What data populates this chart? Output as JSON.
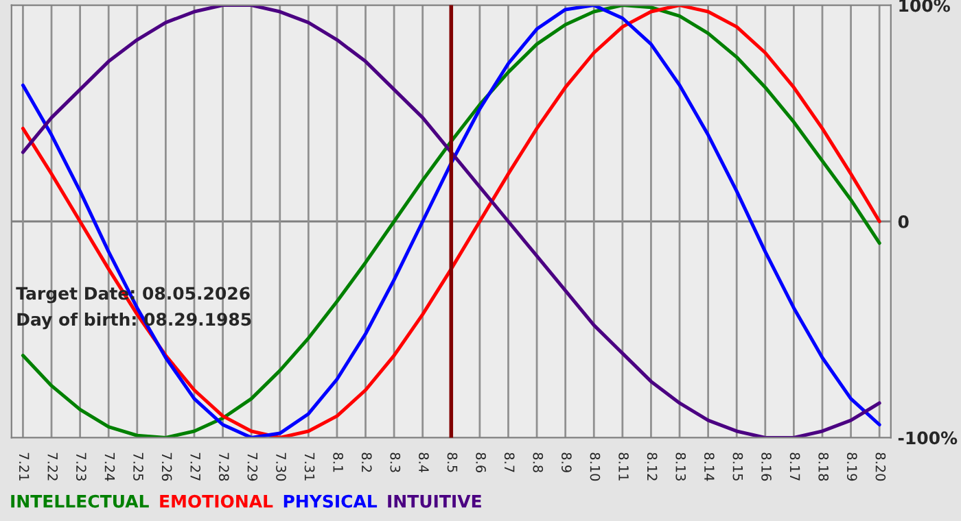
{
  "chart_data": {
    "type": "line",
    "categories": [
      "7.21",
      "7.22",
      "7.23",
      "7.24",
      "7.25",
      "7.26",
      "7.27",
      "7.28",
      "7.29",
      "7.30",
      "7.31",
      "8.1",
      "8.2",
      "8.3",
      "8.4",
      "8.5",
      "8.6",
      "8.7",
      "8.8",
      "8.9",
      "8.10",
      "8.11",
      "8.12",
      "8.13",
      "8.14",
      "8.15",
      "8.16",
      "8.17",
      "8.18",
      "8.19",
      "8.20"
    ],
    "series": [
      {
        "name": "INTELLECTUAL",
        "color": "#008000",
        "values": [
          -62,
          -76,
          -87,
          -95,
          -99,
          -100,
          -97,
          -91,
          -82,
          -69,
          -54,
          -37,
          -19,
          0,
          19,
          37,
          54,
          69,
          82,
          91,
          97,
          100,
          99,
          95,
          87,
          76,
          62,
          46,
          28,
          10,
          -10
        ]
      },
      {
        "name": "EMOTIONAL",
        "color": "#ff0000",
        "values": [
          43,
          22,
          0,
          -22,
          -43,
          -62,
          -78,
          -90,
          -97,
          -100,
          -97,
          -90,
          -78,
          -62,
          -43,
          -22,
          0,
          22,
          43,
          62,
          78,
          90,
          97,
          100,
          97,
          90,
          78,
          62,
          43,
          22,
          0
        ]
      },
      {
        "name": "PHYSICAL",
        "color": "#0000ff",
        "values": [
          63,
          40,
          14,
          -14,
          -40,
          -63,
          -82,
          -94,
          -100,
          -98,
          -89,
          -73,
          -52,
          -27,
          0,
          27,
          52,
          73,
          89,
          98,
          100,
          94,
          82,
          63,
          40,
          14,
          -14,
          -40,
          -63,
          -82,
          -94
        ]
      },
      {
        "name": "INTUITIVE",
        "color": "#4b0082",
        "values": [
          32,
          48,
          61,
          74,
          84,
          92,
          97,
          100,
          100,
          97,
          92,
          84,
          74,
          61,
          48,
          32,
          16,
          0,
          -16,
          -32,
          -48,
          -61,
          -74,
          -84,
          -92,
          -97,
          -100,
          -100,
          -97,
          -92,
          -84
        ]
      }
    ],
    "ylim": [
      -100,
      100
    ],
    "yticks": [
      {
        "value": 100,
        "label": "100%"
      },
      0,
      {
        "value": -100,
        "label": "-100%"
      }
    ],
    "ref_lines": [
      {
        "axis": "x",
        "value": "8.5",
        "color": "#800000"
      },
      {
        "axis": "y",
        "value": 0,
        "color": "#808080"
      }
    ],
    "annotations": [
      "Target Date: 08.05.2026",
      "Day of birth: 08.29.1985"
    ],
    "grid": "x",
    "legend": "bottom",
    "marker": "none",
    "line_style": "solid"
  }
}
